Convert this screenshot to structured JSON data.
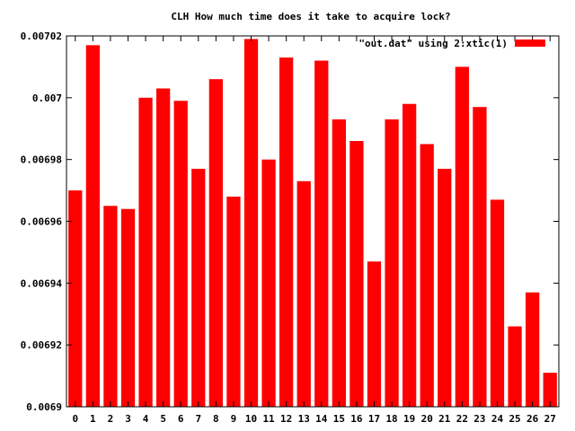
{
  "chart_data": {
    "type": "bar",
    "title": "CLH How much time does it take to acquire lock?",
    "xlabel": "",
    "ylabel": "",
    "legend": {
      "label": "\"out.dat\" using 2:xtic(1)",
      "placement": "top-right"
    },
    "categories": [
      "0",
      "1",
      "2",
      "3",
      "4",
      "5",
      "6",
      "7",
      "8",
      "9",
      "10",
      "11",
      "12",
      "13",
      "14",
      "15",
      "16",
      "17",
      "18",
      "19",
      "20",
      "21",
      "22",
      "23",
      "24",
      "25",
      "26",
      "27"
    ],
    "values": [
      0.00697,
      0.007017,
      0.006965,
      0.006964,
      0.007,
      0.007003,
      0.006999,
      0.006977,
      0.007006,
      0.006968,
      0.007019,
      0.00698,
      0.007013,
      0.006973,
      0.007012,
      0.006993,
      0.006986,
      0.006947,
      0.006993,
      0.006998,
      0.006985,
      0.006977,
      0.00701,
      0.006997,
      0.006967,
      0.006926,
      0.006937,
      0.006911
    ],
    "ylim": [
      0.0069,
      0.00702
    ],
    "yticks": [
      "0.0069",
      "0.00692",
      "0.00694",
      "0.00696",
      "0.00698",
      "0.007",
      "0.00702"
    ],
    "grid": false,
    "bar_color": "#ff0000"
  }
}
